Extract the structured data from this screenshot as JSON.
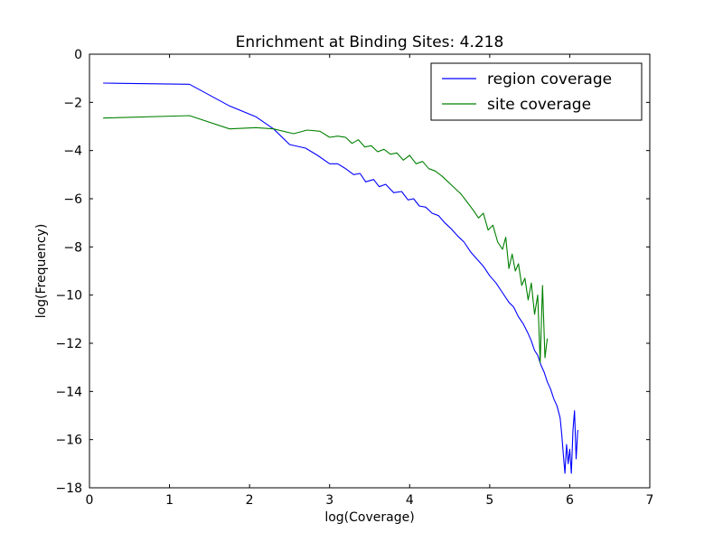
{
  "chart_data": {
    "type": "line",
    "title": "Enrichment at Binding Sites: 4.218",
    "xlabel": "log(Coverage)",
    "ylabel": "log(Frequency)",
    "xlim": [
      0,
      7
    ],
    "ylim": [
      -18,
      0
    ],
    "xticks": [
      0,
      1,
      2,
      3,
      4,
      5,
      6,
      7
    ],
    "yticks": [
      0,
      -2,
      -4,
      -6,
      -8,
      -10,
      -12,
      -14,
      -16,
      -18
    ],
    "xtick_labels": [
      "0",
      "1",
      "2",
      "3",
      "4",
      "5",
      "6",
      "7"
    ],
    "ytick_labels": [
      "0",
      "−2",
      "−4",
      "−6",
      "−8",
      "−10",
      "−12",
      "−14",
      "−16",
      "−18"
    ],
    "grid": false,
    "legend_position": "top-right",
    "series": [
      {
        "name": "region coverage",
        "color": "#0000ff",
        "x": [
          0.17,
          1.25,
          1.75,
          2.08,
          2.3,
          2.5,
          2.7,
          2.85,
          3.0,
          3.1,
          3.2,
          3.3,
          3.38,
          3.45,
          3.55,
          3.62,
          3.7,
          3.8,
          3.9,
          3.98,
          4.05,
          4.12,
          4.2,
          4.28,
          4.36,
          4.44,
          4.52,
          4.6,
          4.68,
          4.76,
          4.84,
          4.92,
          5.0,
          5.08,
          5.16,
          5.24,
          5.3,
          5.36,
          5.42,
          5.48,
          5.52,
          5.56,
          5.6,
          5.64,
          5.68,
          5.72,
          5.76,
          5.8,
          5.84,
          5.88,
          5.9,
          5.92,
          5.94,
          5.96,
          5.98,
          6.0,
          6.02,
          6.04,
          6.06,
          6.08,
          6.1
        ],
        "y": [
          -1.2,
          -1.25,
          -2.15,
          -2.6,
          -3.1,
          -3.75,
          -3.9,
          -4.2,
          -4.55,
          -4.55,
          -4.75,
          -5.0,
          -4.95,
          -5.3,
          -5.2,
          -5.5,
          -5.4,
          -5.75,
          -5.7,
          -6.05,
          -6.0,
          -6.3,
          -6.35,
          -6.6,
          -6.7,
          -7.0,
          -7.25,
          -7.55,
          -7.8,
          -8.2,
          -8.5,
          -8.8,
          -9.2,
          -9.5,
          -9.9,
          -10.3,
          -10.5,
          -10.9,
          -11.2,
          -11.6,
          -11.9,
          -12.3,
          -12.5,
          -12.9,
          -13.2,
          -13.6,
          -13.9,
          -14.3,
          -14.6,
          -15.1,
          -15.8,
          -16.6,
          -17.4,
          -16.2,
          -17.0,
          -16.4,
          -17.4,
          -15.6,
          -14.8,
          -16.8,
          -15.6
        ]
      },
      {
        "name": "site coverage",
        "color": "#008000",
        "x": [
          0.17,
          1.25,
          1.75,
          2.08,
          2.3,
          2.55,
          2.72,
          2.88,
          3.0,
          3.1,
          3.2,
          3.28,
          3.36,
          3.44,
          3.52,
          3.6,
          3.68,
          3.76,
          3.84,
          3.92,
          4.0,
          4.08,
          4.16,
          4.24,
          4.32,
          4.4,
          4.48,
          4.56,
          4.64,
          4.72,
          4.8,
          4.86,
          4.92,
          4.98,
          5.04,
          5.1,
          5.16,
          5.2,
          5.24,
          5.28,
          5.32,
          5.36,
          5.4,
          5.44,
          5.48,
          5.52,
          5.56,
          5.6,
          5.63,
          5.66,
          5.69,
          5.72
        ],
        "y": [
          -2.65,
          -2.55,
          -3.1,
          -3.05,
          -3.1,
          -3.3,
          -3.15,
          -3.2,
          -3.45,
          -3.4,
          -3.45,
          -3.7,
          -3.55,
          -3.85,
          -3.8,
          -4.05,
          -3.95,
          -4.15,
          -4.1,
          -4.4,
          -4.2,
          -4.55,
          -4.45,
          -4.75,
          -4.85,
          -5.05,
          -5.3,
          -5.55,
          -5.8,
          -6.15,
          -6.5,
          -6.8,
          -6.6,
          -7.3,
          -7.1,
          -7.8,
          -8.1,
          -7.6,
          -8.9,
          -8.3,
          -9.0,
          -8.7,
          -9.6,
          -9.3,
          -10.2,
          -9.5,
          -10.8,
          -10.0,
          -12.8,
          -9.6,
          -12.6,
          -11.8
        ]
      }
    ]
  }
}
